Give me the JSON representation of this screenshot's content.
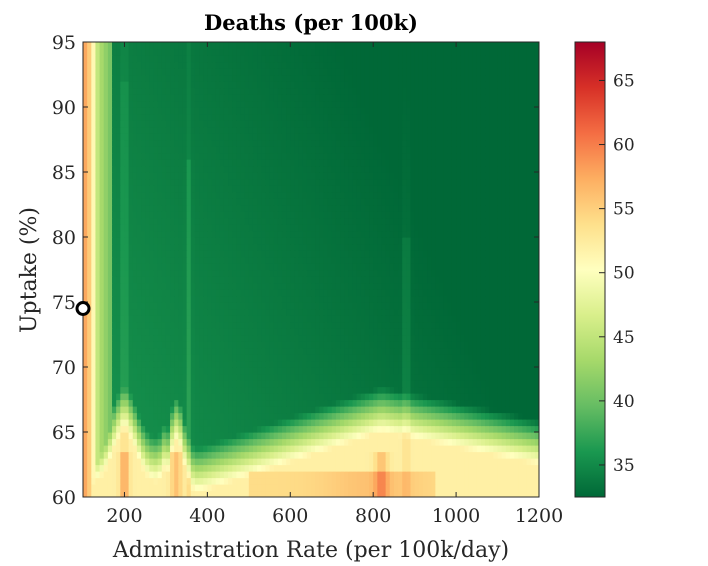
{
  "chart_data": {
    "type": "heatmap",
    "title": "Deaths (per 100k)",
    "xlabel": "Administration Rate (per 100k/day)",
    "ylabel": "Uptake (%)",
    "xlim": [
      100,
      1200
    ],
    "ylim": [
      60,
      95
    ],
    "xticks": [
      200,
      400,
      600,
      800,
      1000,
      1200
    ],
    "yticks": [
      60,
      65,
      70,
      75,
      80,
      85,
      90,
      95
    ],
    "colorbar": {
      "range": [
        32.5,
        68
      ],
      "ticks": [
        35,
        40,
        45,
        50,
        55,
        60,
        65
      ],
      "colormap": "red-yellow-green (reversed)"
    },
    "colormap_stops": [
      "#006837",
      "#1a9850",
      "#66bd63",
      "#a6d96a",
      "#d9ef8b",
      "#ffffbf",
      "#fee08b",
      "#fdae61",
      "#f46d43",
      "#d73027",
      "#a50026"
    ],
    "surface_description": {
      "max_left_edge": 58,
      "plateau_value": 35,
      "bottom_ridge_value": 52
    },
    "marker": {
      "x": 100,
      "y": 74.5,
      "edge_color": "#000000",
      "fill_color": "#ffffff"
    }
  }
}
